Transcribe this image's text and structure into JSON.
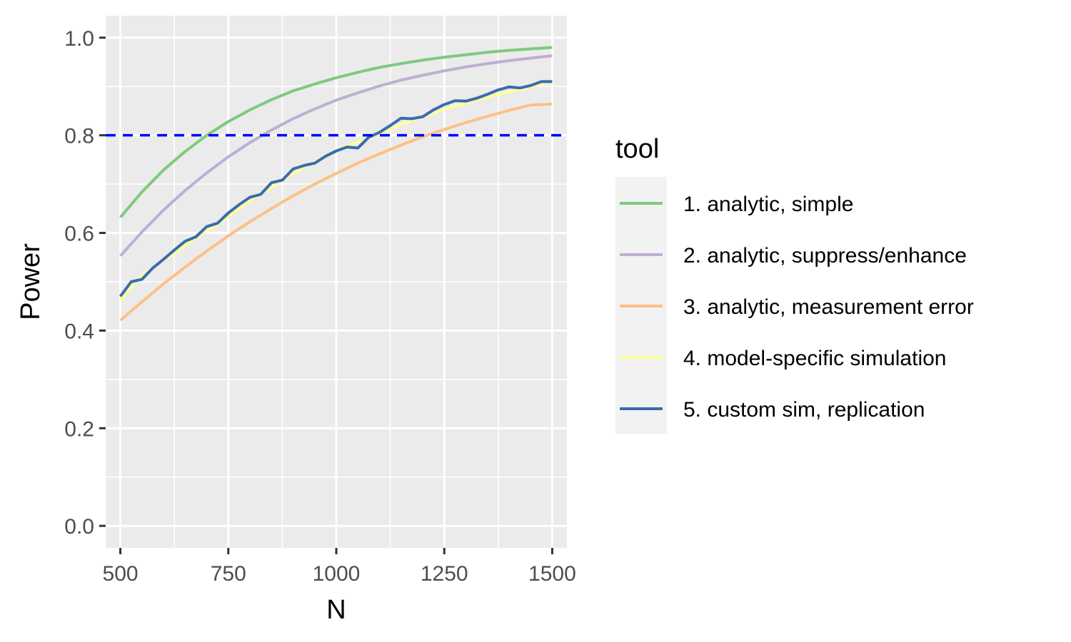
{
  "chart_data": {
    "type": "line",
    "xlabel": "N",
    "ylabel": "Power",
    "xlim": [
      466,
      1534
    ],
    "ylim": [
      -0.045,
      1.045
    ],
    "x_ticks": [
      500,
      750,
      1000,
      1250,
      1500
    ],
    "x_tick_labels": [
      "500",
      "750",
      "1000",
      "1250",
      "1500"
    ],
    "y_ticks": [
      0.0,
      0.2,
      0.4,
      0.6,
      0.8,
      1.0
    ],
    "y_tick_labels": [
      "0.0",
      "0.2",
      "0.4",
      "0.6",
      "0.8",
      "1.0"
    ],
    "grid": true,
    "legend": {
      "title": "tool",
      "position": "right"
    },
    "reference_line": {
      "y": 0.8,
      "color": "#0000ff",
      "style": "dashed"
    },
    "series": [
      {
        "name": "1. analytic, simple",
        "color": "#7fc97f",
        "x": [
          500,
          550,
          600,
          650,
          700,
          750,
          800,
          850,
          900,
          950,
          1000,
          1050,
          1100,
          1150,
          1200,
          1250,
          1300,
          1350,
          1400,
          1450,
          1500
        ],
        "y": [
          0.632,
          0.684,
          0.729,
          0.767,
          0.8,
          0.828,
          0.852,
          0.873,
          0.891,
          0.905,
          0.918,
          0.929,
          0.939,
          0.947,
          0.954,
          0.96,
          0.965,
          0.97,
          0.974,
          0.977,
          0.98
        ]
      },
      {
        "name": "2. analytic, suppress/enhance",
        "color": "#beaed4",
        "x": [
          500,
          550,
          600,
          650,
          700,
          750,
          800,
          850,
          900,
          950,
          1000,
          1050,
          1100,
          1150,
          1200,
          1250,
          1300,
          1350,
          1400,
          1450,
          1500
        ],
        "y": [
          0.553,
          0.602,
          0.647,
          0.687,
          0.723,
          0.756,
          0.785,
          0.811,
          0.834,
          0.854,
          0.872,
          0.887,
          0.901,
          0.913,
          0.923,
          0.932,
          0.94,
          0.947,
          0.953,
          0.958,
          0.963
        ]
      },
      {
        "name": "3. analytic, measurement error",
        "color": "#fdc086",
        "x": [
          500,
          550,
          600,
          650,
          700,
          750,
          800,
          850,
          900,
          950,
          1000,
          1050,
          1100,
          1150,
          1200,
          1250,
          1300,
          1350,
          1400,
          1450,
          1500
        ],
        "y": [
          0.421,
          0.459,
          0.496,
          0.53,
          0.563,
          0.594,
          0.623,
          0.65,
          0.676,
          0.7,
          0.722,
          0.743,
          0.762,
          0.78,
          0.797,
          0.812,
          0.826,
          0.839,
          0.851,
          0.862,
          0.864
        ]
      },
      {
        "name": "4. model-specific simulation",
        "color": "#ffff99",
        "x": [
          500,
          525,
          550,
          575,
          600,
          625,
          650,
          675,
          700,
          725,
          750,
          775,
          800,
          825,
          850,
          875,
          900,
          925,
          950,
          975,
          1000,
          1025,
          1050,
          1075,
          1100,
          1125,
          1150,
          1175,
          1200,
          1225,
          1250,
          1275,
          1300,
          1325,
          1350,
          1375,
          1400,
          1425,
          1450,
          1475,
          1500
        ],
        "y": [
          0.462,
          0.49,
          0.512,
          0.528,
          0.545,
          0.558,
          0.575,
          0.59,
          0.605,
          0.618,
          0.634,
          0.65,
          0.666,
          0.68,
          0.694,
          0.708,
          0.722,
          0.734,
          0.746,
          0.758,
          0.768,
          0.778,
          0.786,
          0.795,
          0.804,
          0.813,
          0.822,
          0.83,
          0.838,
          0.846,
          0.853,
          0.86,
          0.866,
          0.872,
          0.878,
          0.884,
          0.889,
          0.894,
          0.899,
          0.905,
          0.91
        ]
      },
      {
        "name": "5. custom sim, replication",
        "color": "#386cb0",
        "x": [
          500,
          525,
          550,
          575,
          600,
          625,
          650,
          675,
          700,
          725,
          750,
          775,
          800,
          825,
          850,
          875,
          900,
          925,
          950,
          975,
          1000,
          1025,
          1050,
          1075,
          1100,
          1125,
          1150,
          1175,
          1200,
          1225,
          1250,
          1275,
          1300,
          1325,
          1350,
          1375,
          1400,
          1425,
          1450,
          1475,
          1500
        ],
        "y": [
          0.47,
          0.5,
          0.505,
          0.528,
          0.546,
          0.565,
          0.583,
          0.592,
          0.613,
          0.62,
          0.641,
          0.658,
          0.673,
          0.679,
          0.703,
          0.708,
          0.731,
          0.738,
          0.743,
          0.757,
          0.768,
          0.776,
          0.774,
          0.796,
          0.806,
          0.82,
          0.835,
          0.834,
          0.838,
          0.852,
          0.863,
          0.871,
          0.87,
          0.876,
          0.884,
          0.893,
          0.899,
          0.897,
          0.902,
          0.91,
          0.91
        ]
      }
    ]
  }
}
